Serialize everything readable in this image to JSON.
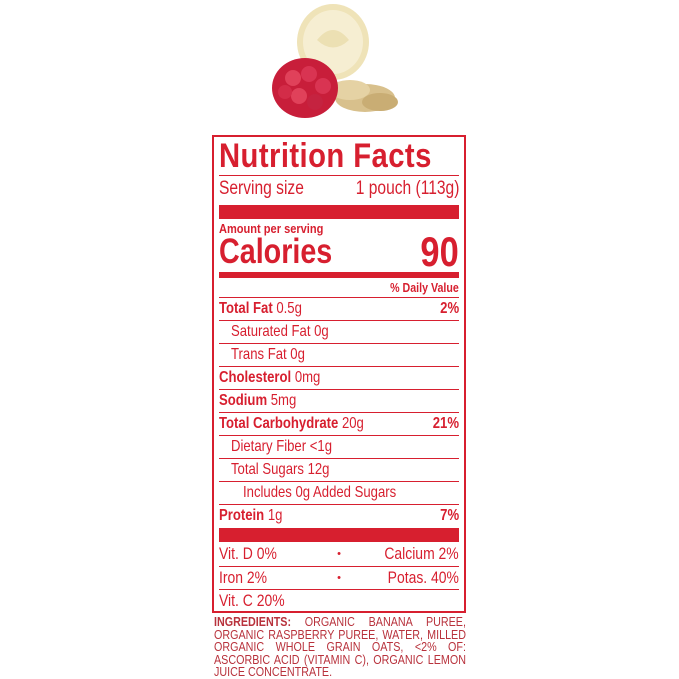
{
  "label": {
    "title": "Nutrition Facts",
    "serving_size_label": "Serving size",
    "serving_size_value": "1 pouch (113g)",
    "amount_per_serving": "Amount per serving",
    "calories_label": "Calories",
    "calories_value": "90",
    "daily_value_header": "% Daily Value",
    "nutrients": [
      {
        "name": "Total Fat",
        "amount": "0.5g",
        "dv": "2%"
      },
      {
        "name": "Saturated Fat 0g"
      },
      {
        "name": "Trans Fat 0g"
      },
      {
        "name": "Cholesterol",
        "amount": "0mg"
      },
      {
        "name": "Sodium",
        "amount": "5mg"
      },
      {
        "name": "Total Carbohydrate",
        "amount": "20g",
        "dv": "21%"
      },
      {
        "name": "Dietary Fiber <1g"
      },
      {
        "name": "Total Sugars 12g"
      },
      {
        "name": "Includes 0g Added Sugars"
      },
      {
        "name": "Protein",
        "amount": "1g",
        "dv": "7%"
      }
    ],
    "vitamins": [
      {
        "left": "Vit. D 0%",
        "sep": "•",
        "right": "Calcium 2%"
      },
      {
        "left": "Iron 2%",
        "sep": "•",
        "right": "Potas. 40%"
      },
      {
        "left": "Vit. C 20%"
      }
    ]
  },
  "ingredients": {
    "heading": "INGREDIENTS:",
    "text": "ORGANIC BANANA PUREE, ORGANIC RASPBERRY PUREE, WATER, MILLED ORGANIC WHOLE GRAIN OATS, <2% OF: ASCORBIC ACID (VITAMIN C), ORGANIC LEMON JUICE CONCENTRATE."
  },
  "colors": {
    "label_red": "#d71f2f",
    "ingredients_red": "#b8323c"
  },
  "image": {
    "fruit": [
      "banana-slice",
      "raspberry",
      "oat-flakes"
    ]
  }
}
